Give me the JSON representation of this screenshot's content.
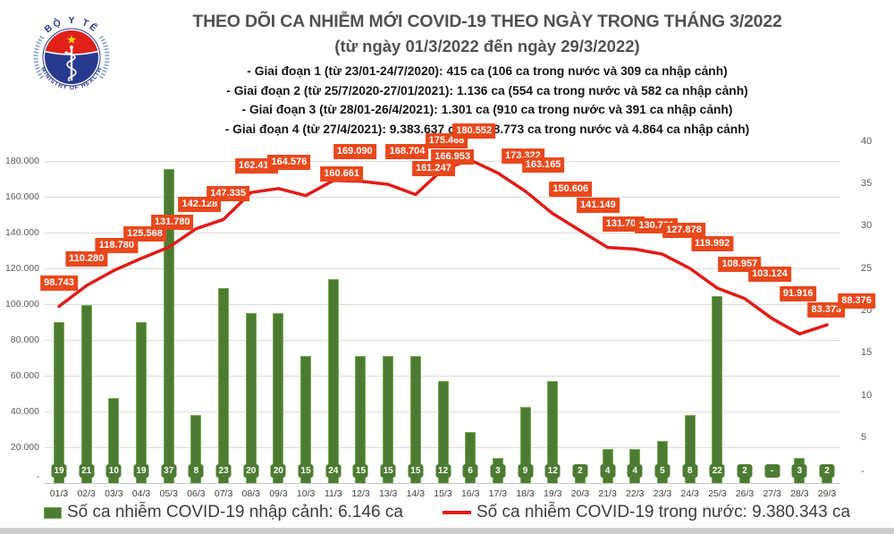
{
  "header": {
    "logo": {
      "arc_top": "BỘ Y TẾ",
      "arc_bottom": "MINISTRY OF HEALTH"
    },
    "title": "THEO DÕI CA NHIỄM MỚI COVID-19 THEO NGÀY TRONG THÁNG 3/2022",
    "subtitle": "(từ ngày 01/3/2022 đến ngày 29/3/2022)",
    "stages": [
      "- Giai đoạn 1 (từ 23/01-24/7/2020): 415 ca (106 ca trong nước và 309 ca nhập cảnh)",
      "- Giai đoạn 2 (từ 25/7/2020-27/01/2021): 1.136 ca (554 ca trong nước và 582 ca nhập cảnh)",
      "- Giai đoạn 3 (từ 28/01-26/4/2021): 1.301 ca (910 ca trong nước và 391 ca nhập cảnh)",
      "- Giai đoạn 4 (từ 27/4/2021): 9.383.637 ca (9.378.773 ca trong nước và 4.864 ca nhập cảnh)"
    ]
  },
  "chart_data": {
    "type": "combo: bar (right axis) + line (left axis)",
    "categories": [
      "01/3",
      "02/3",
      "03/3",
      "04/3",
      "05/3",
      "06/3",
      "07/3",
      "08/3",
      "09/3",
      "10/3",
      "11/3",
      "12/3",
      "13/3",
      "14/3",
      "15/3",
      "16/3",
      "17/3",
      "18/3",
      "19/3",
      "20/3",
      "21/3",
      "22/3",
      "23/3",
      "24/3",
      "25/3",
      "26/3",
      "27/3",
      "28/3",
      "29/3"
    ],
    "series": [
      {
        "name": "Số ca nhiễm COVID-19 nhập cảnh",
        "type": "bar",
        "axis": "right",
        "color": "#4e7b33",
        "values": [
          19,
          21,
          10,
          19,
          37,
          8,
          23,
          20,
          20,
          15,
          24,
          15,
          15,
          15,
          12,
          6,
          3,
          9,
          12,
          2,
          4,
          4,
          5,
          8,
          22,
          2,
          0,
          3,
          2
        ],
        "labels": [
          "19",
          "21",
          "10",
          "19",
          "37",
          "8",
          "23",
          "20",
          "20",
          "15",
          "24",
          "15",
          "15",
          "15",
          "12",
          "6",
          "3",
          "9",
          "12",
          "2",
          "4",
          "4",
          "5",
          "8",
          "22",
          "2",
          "-",
          "3",
          "2"
        ]
      },
      {
        "name": "Số ca nhiễm COVID-19 trong nước",
        "type": "line",
        "axis": "left",
        "color": "#e01b17",
        "values": [
          98743,
          110280,
          118780,
          125568,
          131780,
          142128,
          147335,
          162415,
          164576,
          160661,
          169090,
          168704,
          166953,
          161247,
          175468,
          180552,
          173322,
          163165,
          150606,
          141149,
          131709,
          130731,
          127878,
          119992,
          108957,
          103124,
          91916,
          83373,
          88376
        ],
        "labels": [
          "98.743",
          "110.280",
          "118.780",
          "125.568",
          "131.780",
          "142.128",
          "147.335",
          "162.415",
          "164.576",
          "160.661",
          "169.090",
          "168.704",
          "166.953",
          "161.247",
          "175.468",
          "180.552",
          "173.322",
          "163.165",
          "150.606",
          "141.149",
          "131.709",
          "130.731",
          "127.878",
          "119.992",
          "108.957",
          "103.124",
          "91.916",
          "83.373",
          "88.376"
        ]
      }
    ],
    "left_axis": {
      "values": [
        0,
        20000,
        40000,
        60000,
        80000,
        100000,
        120000,
        140000,
        160000,
        180000
      ],
      "labels": [
        "-",
        "20.000",
        "40.000",
        "60.000",
        "80.000",
        "100.000",
        "120.000",
        "140.000",
        "160.000",
        "180.000"
      ],
      "max": 195000
    },
    "right_axis": {
      "values": [
        0,
        5,
        10,
        15,
        20,
        25,
        30,
        35,
        40
      ],
      "labels": [
        "-",
        "5",
        "10",
        "15",
        "20",
        "25",
        "30",
        "35",
        "40"
      ],
      "max": 40
    },
    "grid": true,
    "legend_position": "bottom"
  },
  "legend": {
    "items": [
      {
        "swatch": "bar-swatch",
        "color": "#4e7b33",
        "label": "Số ca nhiễm COVID-19 nhập cảnh: 6.146 ca"
      },
      {
        "swatch": "line-swatch",
        "color": "#e01b17",
        "label": "Số ca nhiễm COVID-19 trong nước: 9.380.343 ca"
      }
    ]
  },
  "colors": {
    "bar_fill": "#4e7b33",
    "bar_border": "#74ad4e",
    "line": "#e01b17",
    "data_label_box": "#e8481c",
    "title_text": "#515151",
    "axis_text": "#595959",
    "gridline": "#dbdbdb"
  }
}
